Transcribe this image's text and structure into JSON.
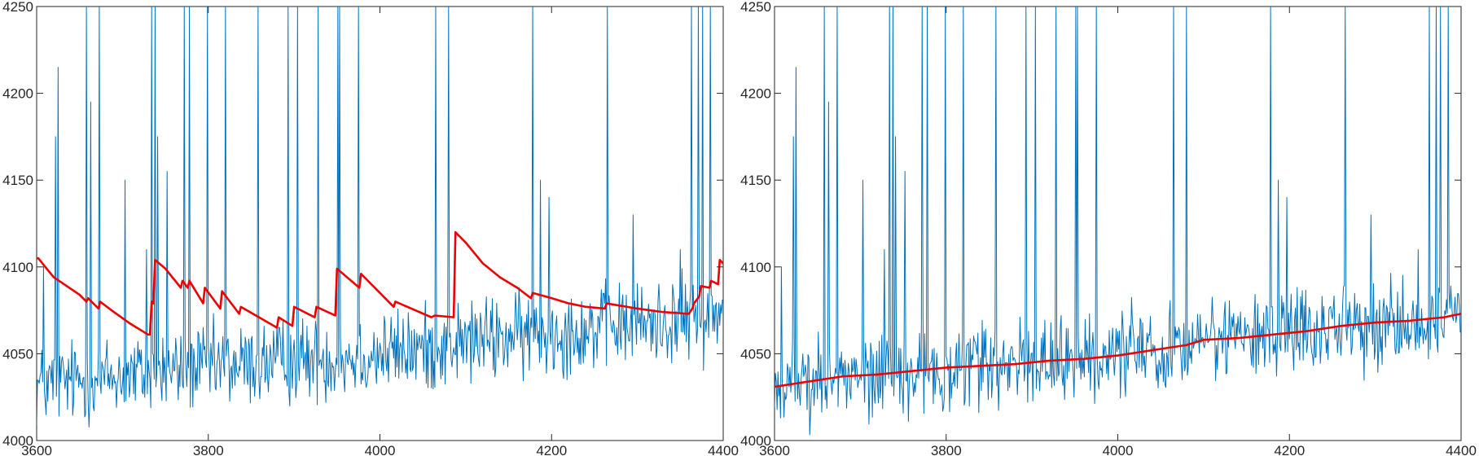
{
  "colors": {
    "signal": "#0072bd",
    "estimate": "#ee0000",
    "axis": "#262626"
  },
  "chart_data": [
    {
      "type": "line",
      "title": "",
      "xlabel": "",
      "ylabel": "",
      "xlim": [
        3600,
        4400
      ],
      "ylim": [
        4000,
        4250
      ],
      "xticks": [
        "3600",
        "3800",
        "4000",
        "4200",
        "4400"
      ],
      "yticks": [
        "4000",
        "4050",
        "4100",
        "4150",
        "4200",
        "4250"
      ],
      "grid": false,
      "legend": "none",
      "series": [
        {
          "style": "noisy-signal",
          "x": [
            3600,
            3620,
            3640,
            3660,
            3680,
            3700,
            3720,
            3740,
            3760,
            3780,
            3800,
            3820,
            3840,
            3860,
            3880,
            3900,
            3920,
            3940,
            3960,
            3980,
            4000,
            4020,
            4040,
            4060,
            4080,
            4100,
            4120,
            4140,
            4160,
            4180,
            4200,
            4220,
            4240,
            4260,
            4280,
            4300,
            4320,
            4340,
            4360,
            4380,
            4400
          ],
          "y": [
            4031,
            4033,
            4034,
            4035,
            4036,
            4037,
            4038,
            4039,
            4040,
            4041,
            4042,
            4043,
            4043,
            4044,
            4045,
            4046,
            4046,
            4047,
            4048,
            4049,
            4050,
            4051,
            4052,
            4053,
            4055,
            4057,
            4058,
            4059,
            4060,
            4061,
            4062,
            4063,
            4064,
            4065,
            4066,
            4067,
            4068,
            4069,
            4070,
            4071,
            4072
          ],
          "noise_amplitude": 12,
          "spikes": [
            {
              "x": 3608,
              "y": 4100
            },
            {
              "x": 3622,
              "y": 4175
            },
            {
              "x": 3625,
              "y": 4215
            },
            {
              "x": 3658,
              "y": 4250
            },
            {
              "x": 3663,
              "y": 4195
            },
            {
              "x": 3673,
              "y": 4250
            },
            {
              "x": 3703,
              "y": 4150
            },
            {
              "x": 3728,
              "y": 4110
            },
            {
              "x": 3734,
              "y": 4250
            },
            {
              "x": 3738,
              "y": 4250
            },
            {
              "x": 3741,
              "y": 4175
            },
            {
              "x": 3752,
              "y": 4155
            },
            {
              "x": 3772,
              "y": 4250
            },
            {
              "x": 3778,
              "y": 4250
            },
            {
              "x": 3799,
              "y": 4250
            },
            {
              "x": 3820,
              "y": 4250
            },
            {
              "x": 3858,
              "y": 4250
            },
            {
              "x": 3893,
              "y": 4250
            },
            {
              "x": 3904,
              "y": 4250
            },
            {
              "x": 3928,
              "y": 4250
            },
            {
              "x": 3951,
              "y": 4250
            },
            {
              "x": 3953,
              "y": 4250
            },
            {
              "x": 3975,
              "y": 4250
            },
            {
              "x": 4065,
              "y": 4250
            },
            {
              "x": 4080,
              "y": 4250
            },
            {
              "x": 4178,
              "y": 4250
            },
            {
              "x": 4187,
              "y": 4150
            },
            {
              "x": 4197,
              "y": 4140
            },
            {
              "x": 4265,
              "y": 4250
            },
            {
              "x": 4295,
              "y": 4130
            },
            {
              "x": 4350,
              "y": 4110
            },
            {
              "x": 4363,
              "y": 4250
            },
            {
              "x": 4371,
              "y": 4250
            },
            {
              "x": 4376,
              "y": 4250
            },
            {
              "x": 4385,
              "y": 4250
            }
          ]
        },
        {
          "style": "estimate",
          "x": [
            3600,
            3602,
            3610,
            3620,
            3650,
            3658,
            3660,
            3672,
            3674,
            3690,
            3710,
            3730,
            3732,
            3734,
            3736,
            3738,
            3750,
            3768,
            3770,
            3776,
            3778,
            3794,
            3796,
            3814,
            3816,
            3836,
            3838,
            3880,
            3882,
            3898,
            3900,
            3924,
            3926,
            3948,
            3950,
            3976,
            3978,
            4016,
            4018,
            4060,
            4064,
            4086,
            4088,
            4100,
            4120,
            4140,
            4160,
            4176,
            4178,
            4200,
            4220,
            4240,
            4262,
            4264,
            4300,
            4330,
            4360,
            4364,
            4366,
            4372,
            4374,
            4384,
            4386,
            4394,
            4396,
            4400
          ],
          "y": [
            4105,
            4105,
            4100,
            4094,
            4084,
            4080,
            4082,
            4076,
            4080,
            4074,
            4067,
            4061,
            4061,
            4080,
            4079,
            4104,
            4099,
            4088,
            4092,
            4088,
            4092,
            4079,
            4088,
            4076,
            4086,
            4073,
            4077,
            4065,
            4071,
            4066,
            4077,
            4071,
            4077,
            4072,
            4099,
            4088,
            4096,
            4077,
            4080,
            4071,
            4072,
            4071,
            4120,
            4114,
            4102,
            4094,
            4088,
            4082,
            4085,
            4082,
            4079,
            4077,
            4076,
            4079,
            4076,
            4074,
            4073,
            4076,
            4079,
            4083,
            4089,
            4088,
            4092,
            4090,
            4104,
            4102
          ]
        }
      ]
    },
    {
      "type": "line",
      "title": "",
      "xlabel": "",
      "ylabel": "",
      "xlim": [
        3600,
        4400
      ],
      "ylim": [
        4000,
        4250
      ],
      "xticks": [
        "3600",
        "3800",
        "4000",
        "4200",
        "4400"
      ],
      "yticks": [
        "4000",
        "4050",
        "4100",
        "4150",
        "4200",
        "4250"
      ],
      "grid": false,
      "legend": "none",
      "series": [
        {
          "style": "noisy-signal",
          "x": [
            3600,
            3620,
            3640,
            3660,
            3680,
            3700,
            3720,
            3740,
            3760,
            3780,
            3800,
            3820,
            3840,
            3860,
            3880,
            3900,
            3920,
            3940,
            3960,
            3980,
            4000,
            4020,
            4040,
            4060,
            4080,
            4100,
            4120,
            4140,
            4160,
            4180,
            4200,
            4220,
            4240,
            4260,
            4280,
            4300,
            4320,
            4340,
            4360,
            4380,
            4400
          ],
          "y": [
            4031,
            4033,
            4034,
            4035,
            4036,
            4037,
            4038,
            4039,
            4040,
            4041,
            4042,
            4043,
            4043,
            4044,
            4045,
            4046,
            4046,
            4047,
            4048,
            4049,
            4050,
            4051,
            4052,
            4053,
            4055,
            4057,
            4058,
            4059,
            4060,
            4061,
            4062,
            4063,
            4064,
            4065,
            4066,
            4067,
            4068,
            4069,
            4070,
            4071,
            4072
          ],
          "noise_amplitude": 12,
          "spikes": [
            {
              "x": 3608,
              "y": 4100
            },
            {
              "x": 3622,
              "y": 4175
            },
            {
              "x": 3625,
              "y": 4215
            },
            {
              "x": 3658,
              "y": 4250
            },
            {
              "x": 3663,
              "y": 4195
            },
            {
              "x": 3673,
              "y": 4250
            },
            {
              "x": 3703,
              "y": 4150
            },
            {
              "x": 3728,
              "y": 4110
            },
            {
              "x": 3734,
              "y": 4250
            },
            {
              "x": 3738,
              "y": 4250
            },
            {
              "x": 3741,
              "y": 4175
            },
            {
              "x": 3752,
              "y": 4155
            },
            {
              "x": 3772,
              "y": 4250
            },
            {
              "x": 3778,
              "y": 4250
            },
            {
              "x": 3799,
              "y": 4250
            },
            {
              "x": 3820,
              "y": 4250
            },
            {
              "x": 3858,
              "y": 4250
            },
            {
              "x": 3893,
              "y": 4250
            },
            {
              "x": 3904,
              "y": 4250
            },
            {
              "x": 3928,
              "y": 4250
            },
            {
              "x": 3951,
              "y": 4250
            },
            {
              "x": 3953,
              "y": 4250
            },
            {
              "x": 3975,
              "y": 4250
            },
            {
              "x": 4065,
              "y": 4250
            },
            {
              "x": 4080,
              "y": 4250
            },
            {
              "x": 4178,
              "y": 4250
            },
            {
              "x": 4187,
              "y": 4150
            },
            {
              "x": 4197,
              "y": 4140
            },
            {
              "x": 4265,
              "y": 4250
            },
            {
              "x": 4295,
              "y": 4130
            },
            {
              "x": 4350,
              "y": 4110
            },
            {
              "x": 4363,
              "y": 4250
            },
            {
              "x": 4371,
              "y": 4250
            },
            {
              "x": 4376,
              "y": 4250
            },
            {
              "x": 4385,
              "y": 4250
            }
          ]
        },
        {
          "style": "estimate",
          "x": [
            3600,
            3640,
            3680,
            3720,
            3760,
            3800,
            3840,
            3880,
            3920,
            3960,
            4000,
            4040,
            4080,
            4100,
            4140,
            4180,
            4220,
            4260,
            4300,
            4340,
            4380,
            4400
          ],
          "y": [
            4031,
            4034,
            4037,
            4038,
            4040,
            4042,
            4043,
            4044,
            4046,
            4047,
            4049,
            4052,
            4055,
            4058,
            4059,
            4061,
            4063,
            4066,
            4068,
            4069,
            4071,
            4073
          ]
        }
      ]
    }
  ]
}
